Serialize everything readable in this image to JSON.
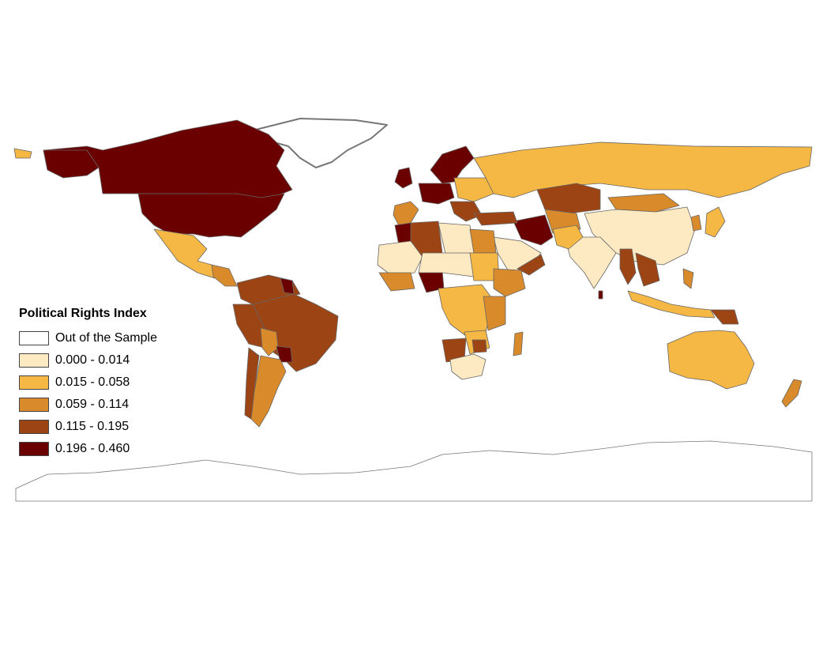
{
  "legend": {
    "title": "Political Rights Index",
    "items": [
      {
        "label": "Out of the Sample",
        "color": "#ffffff"
      },
      {
        "label": "0.000 - 0.014",
        "color": "#fde9c2"
      },
      {
        "label": "0.015 - 0.058",
        "color": "#f6b844"
      },
      {
        "label": "0.059 - 0.114",
        "color": "#d98a2a"
      },
      {
        "label": "0.115 - 0.195",
        "color": "#9c4414"
      },
      {
        "label": "0.196 - 0.460",
        "color": "#6b0000"
      }
    ]
  },
  "colors": {
    "border": "#666666",
    "coast_shadow": "#777777",
    "background": "#ffffff"
  }
}
